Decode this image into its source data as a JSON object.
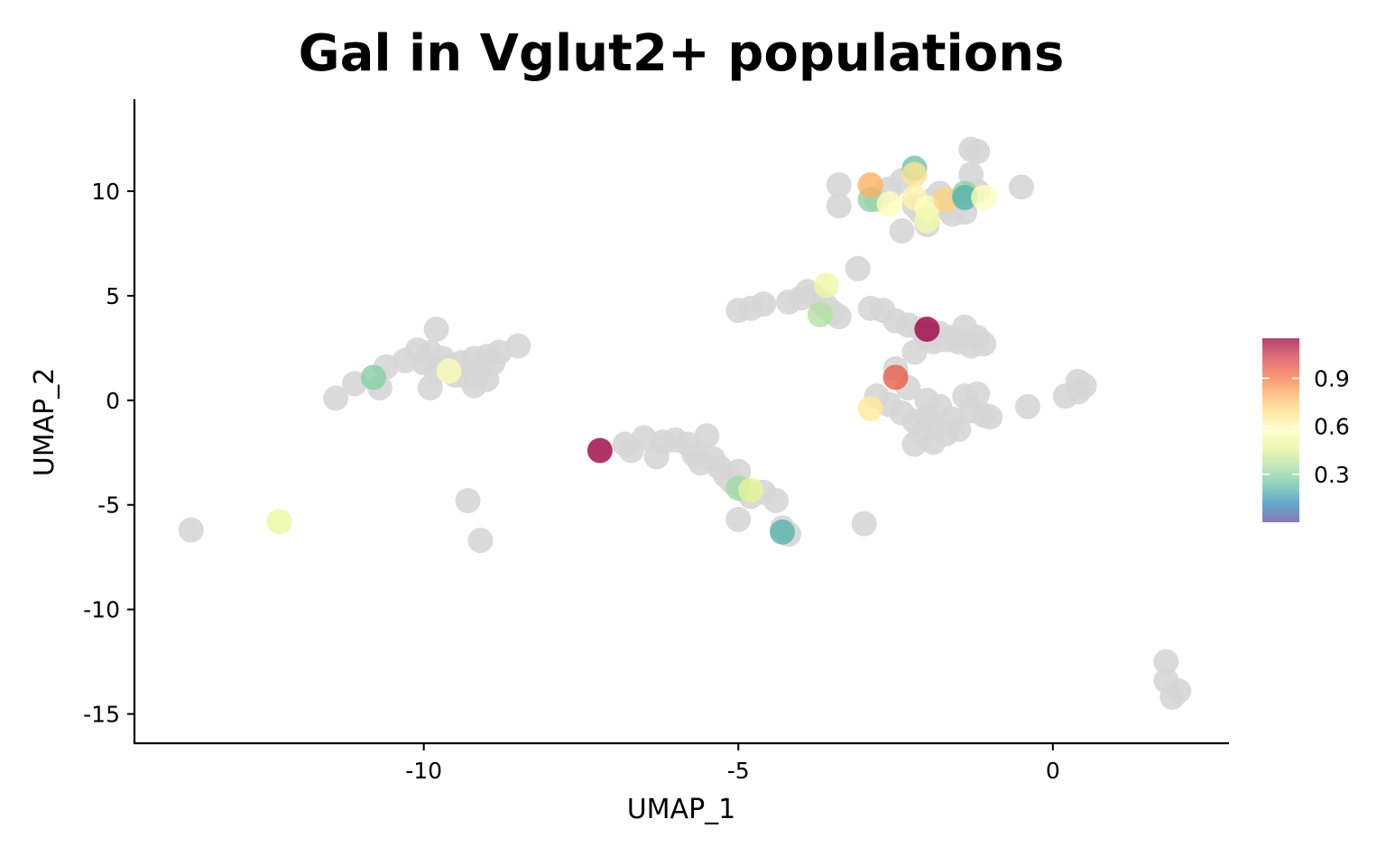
{
  "chart_data": {
    "type": "scatter",
    "title": "Gal in Vglut2+ populations",
    "xlabel": "UMAP_1",
    "ylabel": "UMAP_2",
    "xlim": [
      -14.6,
      2.8
    ],
    "ylim": [
      -16.4,
      14.4
    ],
    "xticks": [
      -10,
      -5,
      0
    ],
    "yticks": [
      10,
      5,
      0,
      -5,
      -10,
      -15
    ],
    "grid": false,
    "background_points_color": "#d6d6d6",
    "colorbar": {
      "ticks": [
        "0.9",
        "0.6",
        "0.3"
      ],
      "tick_values": [
        0.9,
        0.6,
        0.3
      ],
      "range": [
        0.0,
        1.15
      ],
      "placement": "right",
      "gradient": [
        "#5e4fa2",
        "#3288bd",
        "#66c2a5",
        "#abdda4",
        "#e6f598",
        "#ffffbf",
        "#fee08b",
        "#fdae61",
        "#f46d43",
        "#d53e4f",
        "#9e0142"
      ]
    },
    "background_points": [
      [
        -13.7,
        -6.2
      ],
      [
        -11.4,
        0.1
      ],
      [
        -11.1,
        0.8
      ],
      [
        -10.7,
        0.6
      ],
      [
        -10.6,
        1.6
      ],
      [
        -10.3,
        1.9
      ],
      [
        -10.1,
        2.4
      ],
      [
        -10.0,
        1.8
      ],
      [
        -9.9,
        2.3
      ],
      [
        -9.8,
        1.4
      ],
      [
        -9.9,
        0.6
      ],
      [
        -9.7,
        2.0
      ],
      [
        -9.6,
        1.6
      ],
      [
        -9.5,
        1.2
      ],
      [
        -9.4,
        1.8
      ],
      [
        -9.3,
        1.1
      ],
      [
        -9.2,
        2.0
      ],
      [
        -9.1,
        1.5
      ],
      [
        -9.0,
        1.0
      ],
      [
        -9.2,
        0.7
      ],
      [
        -8.9,
        1.8
      ],
      [
        -9.0,
        2.1
      ],
      [
        -8.8,
        2.3
      ],
      [
        -8.5,
        2.6
      ],
      [
        -9.8,
        3.4
      ],
      [
        -9.3,
        -4.8
      ],
      [
        -9.1,
        -6.7
      ],
      [
        -6.8,
        -2.1
      ],
      [
        -6.7,
        -2.4
      ],
      [
        -6.5,
        -1.8
      ],
      [
        -6.3,
        -2.7
      ],
      [
        -6.2,
        -2.0
      ],
      [
        -6.0,
        -1.9
      ],
      [
        -5.8,
        -2.1
      ],
      [
        -5.7,
        -2.6
      ],
      [
        -5.6,
        -3.0
      ],
      [
        -5.5,
        -1.7
      ],
      [
        -5.4,
        -2.8
      ],
      [
        -5.3,
        -3.2
      ],
      [
        -5.2,
        -3.6
      ],
      [
        -5.1,
        -3.9
      ],
      [
        -5.0,
        -3.4
      ],
      [
        -4.9,
        -4.3
      ],
      [
        -4.8,
        -4.6
      ],
      [
        -4.6,
        -4.4
      ],
      [
        -4.4,
        -4.8
      ],
      [
        -5.0,
        -5.7
      ],
      [
        -4.3,
        -6.1
      ],
      [
        -4.2,
        -6.4
      ],
      [
        -3.0,
        -5.9
      ],
      [
        -5.0,
        4.3
      ],
      [
        -4.8,
        4.4
      ],
      [
        -4.6,
        4.6
      ],
      [
        -4.2,
        4.7
      ],
      [
        -4.0,
        4.9
      ],
      [
        -3.9,
        5.2
      ],
      [
        -3.8,
        5.0
      ],
      [
        -3.7,
        4.8
      ],
      [
        -3.6,
        4.5
      ],
      [
        -3.5,
        4.2
      ],
      [
        -3.4,
        4.0
      ],
      [
        -3.1,
        6.3
      ],
      [
        -2.9,
        4.4
      ],
      [
        -2.7,
        4.3
      ],
      [
        -2.5,
        3.8
      ],
      [
        -2.3,
        3.6
      ],
      [
        -2.1,
        3.4
      ],
      [
        -2.0,
        3.0
      ],
      [
        -1.9,
        2.8
      ],
      [
        -1.8,
        3.2
      ],
      [
        -1.7,
        2.9
      ],
      [
        -1.6,
        3.0
      ],
      [
        -1.5,
        2.8
      ],
      [
        -1.4,
        3.5
      ],
      [
        -1.3,
        2.6
      ],
      [
        -1.2,
        3.0
      ],
      [
        -1.1,
        2.7
      ],
      [
        -2.2,
        2.3
      ],
      [
        -2.5,
        1.5
      ],
      [
        -2.3,
        0.6
      ],
      [
        -2.8,
        0.2
      ],
      [
        -2.6,
        -0.2
      ],
      [
        -2.4,
        -0.6
      ],
      [
        -2.2,
        -1.0
      ],
      [
        -2.0,
        -0.8
      ],
      [
        -1.9,
        -1.2
      ],
      [
        -1.8,
        -0.3
      ],
      [
        -1.6,
        -0.9
      ],
      [
        -1.5,
        -1.4
      ],
      [
        -1.4,
        0.2
      ],
      [
        -1.3,
        -0.5
      ],
      [
        -1.2,
        0.3
      ],
      [
        -1.1,
        -0.7
      ],
      [
        -1.0,
        -0.8
      ],
      [
        -2.1,
        -1.6
      ],
      [
        -2.2,
        -2.1
      ],
      [
        -1.9,
        -2.0
      ],
      [
        -1.7,
        -1.6
      ],
      [
        -2.0,
        0.0
      ],
      [
        -0.4,
        -0.3
      ],
      [
        0.2,
        0.2
      ],
      [
        0.4,
        0.9
      ],
      [
        0.5,
        0.7
      ],
      [
        0.4,
        0.4
      ],
      [
        -3.4,
        10.3
      ],
      [
        -3.4,
        9.3
      ],
      [
        -2.8,
        9.6
      ],
      [
        -2.6,
        10.1
      ],
      [
        -2.4,
        8.1
      ],
      [
        -2.4,
        10.5
      ],
      [
        -2.2,
        9.3
      ],
      [
        -2.1,
        9.0
      ],
      [
        -2.0,
        8.4
      ],
      [
        -1.9,
        9.6
      ],
      [
        -1.8,
        9.9
      ],
      [
        -1.7,
        9.2
      ],
      [
        -1.6,
        8.9
      ],
      [
        -1.5,
        9.4
      ],
      [
        -1.4,
        9.0
      ],
      [
        -1.3,
        9.8
      ],
      [
        -1.2,
        10.0
      ],
      [
        -1.3,
        10.8
      ],
      [
        -1.3,
        12.0
      ],
      [
        -1.2,
        11.9
      ],
      [
        -0.5,
        10.2
      ],
      [
        1.8,
        -12.5
      ],
      [
        1.8,
        -13.4
      ],
      [
        1.9,
        -14.2
      ],
      [
        2.0,
        -13.9
      ]
    ],
    "expressing_points": [
      {
        "x": -10.8,
        "y": 1.1,
        "value": 0.28
      },
      {
        "x": -9.6,
        "y": 1.4,
        "value": 0.55
      },
      {
        "x": -12.3,
        "y": -5.8,
        "value": 0.48
      },
      {
        "x": -7.2,
        "y": -2.4,
        "value": 1.15
      },
      {
        "x": -5.0,
        "y": -4.2,
        "value": 0.33
      },
      {
        "x": -4.8,
        "y": -4.3,
        "value": 0.46
      },
      {
        "x": -4.3,
        "y": -6.3,
        "value": 0.2
      },
      {
        "x": -3.7,
        "y": 4.1,
        "value": 0.36
      },
      {
        "x": -3.6,
        "y": 5.5,
        "value": 0.5
      },
      {
        "x": -2.9,
        "y": -0.4,
        "value": 0.65
      },
      {
        "x": -2.5,
        "y": 1.1,
        "value": 0.96
      },
      {
        "x": -2.0,
        "y": 3.4,
        "value": 1.15
      },
      {
        "x": -2.9,
        "y": 9.6,
        "value": 0.3
      },
      {
        "x": -2.9,
        "y": 10.3,
        "value": 0.8
      },
      {
        "x": -2.6,
        "y": 9.4,
        "value": 0.56
      },
      {
        "x": -2.2,
        "y": 11.1,
        "value": 0.24
      },
      {
        "x": -2.2,
        "y": 10.8,
        "value": 0.68
      },
      {
        "x": -2.2,
        "y": 9.7,
        "value": 0.62
      },
      {
        "x": -2.0,
        "y": 9.2,
        "value": 0.58
      },
      {
        "x": -2.0,
        "y": 8.6,
        "value": 0.52
      },
      {
        "x": -1.7,
        "y": 9.6,
        "value": 0.72
      },
      {
        "x": -1.4,
        "y": 9.9,
        "value": 0.3
      },
      {
        "x": -1.4,
        "y": 9.7,
        "value": 0.2
      },
      {
        "x": -1.1,
        "y": 9.7,
        "value": 0.56
      }
    ]
  }
}
